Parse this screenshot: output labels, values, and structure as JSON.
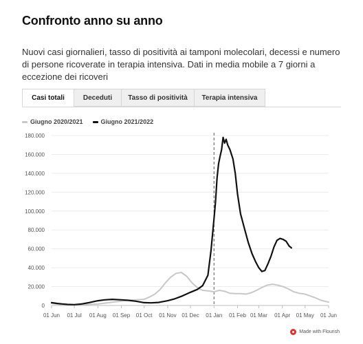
{
  "header": {
    "title": "Confronto anno su anno",
    "subtitle": "Nuovi casi giornalieri, tasso di positività ai tamponi molecolari, decessi e numero di persone ricoverate in terapia intensiva. Dati in media mobile a 7 giorni a eccezione dei ricoveri"
  },
  "tabs": [
    {
      "label": "Casi totali",
      "active": true
    },
    {
      "label": "Deceduti",
      "active": false
    },
    {
      "label": "Tasso di positività",
      "active": false
    },
    {
      "label": "Terapia intensiva",
      "active": false
    }
  ],
  "footer": {
    "credit": "Made with Flourish",
    "icon": "flourish-logo-icon"
  },
  "chart_data": {
    "type": "line",
    "x_ticks": [
      "01 Jun",
      "01 Jul",
      "01 Aug",
      "01 Sep",
      "01 Oct",
      "01 Nov",
      "01 Dec",
      "01 Jan",
      "01 Feb",
      "01 Mar",
      "01 Apr",
      "01 May",
      "01 Jun"
    ],
    "y_ticks": [
      "0",
      "20.000",
      "40.000",
      "60.000",
      "80.000",
      "100.000",
      "120.000",
      "140.000",
      "160.000",
      "180.000"
    ],
    "ylim": [
      0,
      180000
    ],
    "x_range": [
      "01 Jun",
      "01 Jun"
    ],
    "year_boundary": "01 Jan",
    "grid": true,
    "legend": "top-left",
    "series": [
      {
        "name": "Giugno 2020/2021",
        "color": "#c8c8c8",
        "points": [
          [
            "01 Jun",
            2200
          ],
          [
            "08 Jun",
            1500
          ],
          [
            "15 Jun",
            900
          ],
          [
            "22 Jun",
            600
          ],
          [
            "01 Jul",
            500
          ],
          [
            "10 Jul",
            900
          ],
          [
            "20 Jul",
            1200
          ],
          [
            "01 Aug",
            1500
          ],
          [
            "10 Aug",
            2500
          ],
          [
            "20 Aug",
            3500
          ],
          [
            "01 Sep",
            4500
          ],
          [
            "10 Sep",
            5500
          ],
          [
            "20 Sep",
            6000
          ],
          [
            "01 Oct",
            6500
          ],
          [
            "08 Oct",
            9000
          ],
          [
            "15 Oct",
            12000
          ],
          [
            "22 Oct",
            17000
          ],
          [
            "29 Oct",
            24000
          ],
          [
            "05 Nov",
            30000
          ],
          [
            "12 Nov",
            34000
          ],
          [
            "19 Nov",
            35000
          ],
          [
            "26 Nov",
            31000
          ],
          [
            "03 Dec",
            24000
          ],
          [
            "10 Dec",
            19000
          ],
          [
            "17 Dec",
            16000
          ],
          [
            "24 Dec",
            15500
          ],
          [
            "01 Jan",
            14500
          ],
          [
            "08 Jan",
            16000
          ],
          [
            "15 Jan",
            15000
          ],
          [
            "22 Jan",
            13000
          ],
          [
            "29 Jan",
            12500
          ],
          [
            "05 Feb",
            12500
          ],
          [
            "12 Feb",
            12000
          ],
          [
            "19 Feb",
            13500
          ],
          [
            "26 Feb",
            16000
          ],
          [
            "05 Mar",
            19000
          ],
          [
            "12 Mar",
            21500
          ],
          [
            "19 Mar",
            22500
          ],
          [
            "26 Mar",
            21500
          ],
          [
            "02 Apr",
            20000
          ],
          [
            "09 Apr",
            17500
          ],
          [
            "16 Apr",
            14500
          ],
          [
            "23 Apr",
            13000
          ],
          [
            "01 May",
            12000
          ],
          [
            "08 May",
            10000
          ],
          [
            "15 May",
            8000
          ],
          [
            "22 May",
            5500
          ],
          [
            "01 Jun",
            3500
          ]
        ]
      },
      {
        "name": "Giugno 2021/2022",
        "color": "#111111",
        "points": [
          [
            "01 Jun",
            3000
          ],
          [
            "08 Jun",
            2200
          ],
          [
            "15 Jun",
            1600
          ],
          [
            "22 Jun",
            1100
          ],
          [
            "01 Jul",
            900
          ],
          [
            "10 Jul",
            1500
          ],
          [
            "20 Jul",
            3000
          ],
          [
            "01 Aug",
            5000
          ],
          [
            "10 Aug",
            6000
          ],
          [
            "20 Aug",
            6500
          ],
          [
            "01 Sep",
            6000
          ],
          [
            "10 Sep",
            5500
          ],
          [
            "20 Sep",
            4500
          ],
          [
            "01 Oct",
            3000
          ],
          [
            "10 Oct",
            2800
          ],
          [
            "20 Oct",
            3200
          ],
          [
            "01 Nov",
            5000
          ],
          [
            "10 Nov",
            7000
          ],
          [
            "20 Nov",
            10000
          ],
          [
            "01 Dec",
            14000
          ],
          [
            "10 Dec",
            17000
          ],
          [
            "17 Dec",
            21000
          ],
          [
            "24 Dec",
            32000
          ],
          [
            "28 Dec",
            58000
          ],
          [
            "01 Jan",
            92000
          ],
          [
            "03 Jan",
            110000
          ],
          [
            "05 Jan",
            135000
          ],
          [
            "07 Jan",
            150000
          ],
          [
            "09 Jan",
            158000
          ],
          [
            "11 Jan",
            165000
          ],
          [
            "13 Jan",
            178000
          ],
          [
            "15 Jan",
            172000
          ],
          [
            "17 Jan",
            176000
          ],
          [
            "19 Jan",
            170000
          ],
          [
            "22 Jan",
            165000
          ],
          [
            "26 Jan",
            155000
          ],
          [
            "29 Jan",
            140000
          ],
          [
            "01 Feb",
            118000
          ],
          [
            "05 Feb",
            97000
          ],
          [
            "10 Feb",
            82000
          ],
          [
            "15 Feb",
            67000
          ],
          [
            "20 Feb",
            55000
          ],
          [
            "25 Feb",
            46000
          ],
          [
            "01 Mar",
            40000
          ],
          [
            "05 Mar",
            36000
          ],
          [
            "09 Mar",
            37000
          ],
          [
            "13 Mar",
            44000
          ],
          [
            "17 Mar",
            52000
          ],
          [
            "21 Mar",
            62000
          ],
          [
            "25 Mar",
            69000
          ],
          [
            "29 Mar",
            71000
          ],
          [
            "02 Apr",
            70000
          ],
          [
            "06 Apr",
            68000
          ],
          [
            "10 Apr",
            63000
          ],
          [
            "13 Apr",
            61000
          ]
        ]
      }
    ]
  }
}
